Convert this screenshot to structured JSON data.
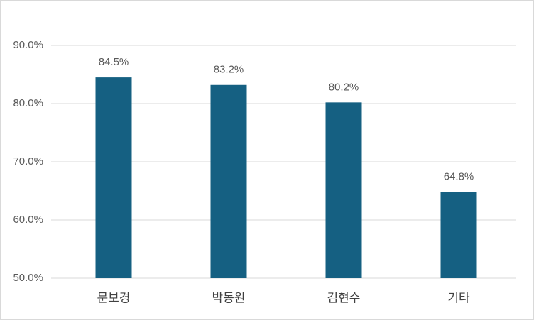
{
  "chart_data": {
    "type": "bar",
    "categories": [
      "문보경",
      "박동원",
      "김현수",
      "기타"
    ],
    "values": [
      84.5,
      83.2,
      80.2,
      64.8
    ],
    "value_labels": [
      "84.5%",
      "83.2%",
      "80.2%",
      "64.8%"
    ],
    "color": "#156082",
    "ylim": [
      50,
      90
    ],
    "yticks": [
      {
        "value": 50,
        "label": "50.0%"
      },
      {
        "value": 60,
        "label": "60.0%"
      },
      {
        "value": 70,
        "label": "70.0%"
      },
      {
        "value": 80,
        "label": "80.0%"
      },
      {
        "value": 90,
        "label": "90.0%"
      }
    ],
    "grid": true
  }
}
